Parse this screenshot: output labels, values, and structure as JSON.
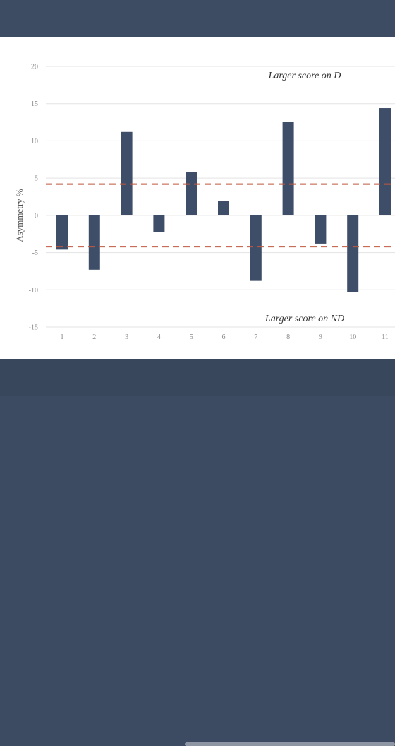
{
  "colors": {
    "background": "#3c4b61",
    "bar": "#3e4e68",
    "threshold_line": "#c0573f",
    "grid": "#e3e3e3"
  },
  "chart_data": {
    "type": "bar",
    "categories": [
      "1",
      "2",
      "3",
      "4",
      "5",
      "6",
      "7",
      "8",
      "9",
      "10",
      "11"
    ],
    "values": [
      -4.6,
      -7.3,
      11.2,
      -2.2,
      5.8,
      1.9,
      -8.8,
      12.6,
      -3.8,
      -10.3,
      14.4
    ],
    "title": "",
    "xlabel": "",
    "ylabel": "Asymmetry %",
    "ylim": [
      -15,
      20
    ],
    "yticks": [
      -15,
      -10,
      -5,
      0,
      5,
      10,
      15,
      20
    ],
    "ytick_labels": [
      "-15",
      "-10",
      "-5",
      "0",
      "5",
      "10",
      "15",
      "20"
    ],
    "grid": true,
    "threshold_lines": [
      4.2,
      -4.2
    ],
    "annotations": {
      "top": "Larger score on D",
      "bottom": "Larger score on ND"
    }
  }
}
